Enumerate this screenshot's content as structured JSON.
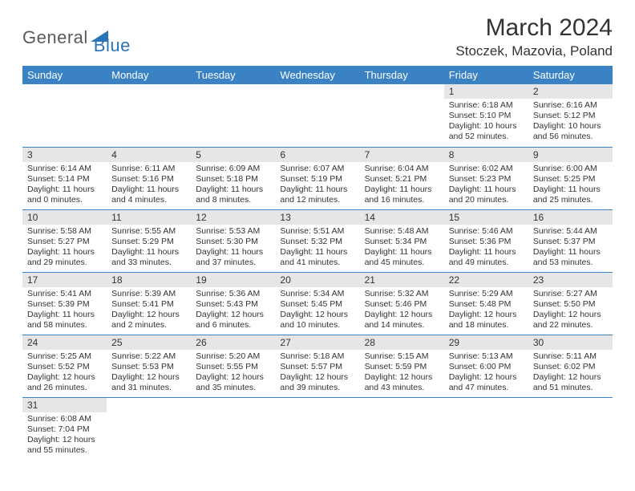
{
  "logo": {
    "general": "General",
    "blue": "Blue"
  },
  "title": "March 2024",
  "location": "Stoczek, Mazovia, Poland",
  "colors": {
    "header_bg": "#3a82c4",
    "header_text": "#ffffff",
    "daynum_bg": "#e6e6e6",
    "cell_border": "#3a82c4",
    "logo_blue": "#2a74b8",
    "logo_gray": "#5a5a5a"
  },
  "day_headers": [
    "Sunday",
    "Monday",
    "Tuesday",
    "Wednesday",
    "Thursday",
    "Friday",
    "Saturday"
  ],
  "weeks": [
    [
      null,
      null,
      null,
      null,
      null,
      {
        "n": "1",
        "sr": "Sunrise: 6:18 AM",
        "ss": "Sunset: 5:10 PM",
        "dl1": "Daylight: 10 hours",
        "dl2": "and 52 minutes."
      },
      {
        "n": "2",
        "sr": "Sunrise: 6:16 AM",
        "ss": "Sunset: 5:12 PM",
        "dl1": "Daylight: 10 hours",
        "dl2": "and 56 minutes."
      }
    ],
    [
      {
        "n": "3",
        "sr": "Sunrise: 6:14 AM",
        "ss": "Sunset: 5:14 PM",
        "dl1": "Daylight: 11 hours",
        "dl2": "and 0 minutes."
      },
      {
        "n": "4",
        "sr": "Sunrise: 6:11 AM",
        "ss": "Sunset: 5:16 PM",
        "dl1": "Daylight: 11 hours",
        "dl2": "and 4 minutes."
      },
      {
        "n": "5",
        "sr": "Sunrise: 6:09 AM",
        "ss": "Sunset: 5:18 PM",
        "dl1": "Daylight: 11 hours",
        "dl2": "and 8 minutes."
      },
      {
        "n": "6",
        "sr": "Sunrise: 6:07 AM",
        "ss": "Sunset: 5:19 PM",
        "dl1": "Daylight: 11 hours",
        "dl2": "and 12 minutes."
      },
      {
        "n": "7",
        "sr": "Sunrise: 6:04 AM",
        "ss": "Sunset: 5:21 PM",
        "dl1": "Daylight: 11 hours",
        "dl2": "and 16 minutes."
      },
      {
        "n": "8",
        "sr": "Sunrise: 6:02 AM",
        "ss": "Sunset: 5:23 PM",
        "dl1": "Daylight: 11 hours",
        "dl2": "and 20 minutes."
      },
      {
        "n": "9",
        "sr": "Sunrise: 6:00 AM",
        "ss": "Sunset: 5:25 PM",
        "dl1": "Daylight: 11 hours",
        "dl2": "and 25 minutes."
      }
    ],
    [
      {
        "n": "10",
        "sr": "Sunrise: 5:58 AM",
        "ss": "Sunset: 5:27 PM",
        "dl1": "Daylight: 11 hours",
        "dl2": "and 29 minutes."
      },
      {
        "n": "11",
        "sr": "Sunrise: 5:55 AM",
        "ss": "Sunset: 5:29 PM",
        "dl1": "Daylight: 11 hours",
        "dl2": "and 33 minutes."
      },
      {
        "n": "12",
        "sr": "Sunrise: 5:53 AM",
        "ss": "Sunset: 5:30 PM",
        "dl1": "Daylight: 11 hours",
        "dl2": "and 37 minutes."
      },
      {
        "n": "13",
        "sr": "Sunrise: 5:51 AM",
        "ss": "Sunset: 5:32 PM",
        "dl1": "Daylight: 11 hours",
        "dl2": "and 41 minutes."
      },
      {
        "n": "14",
        "sr": "Sunrise: 5:48 AM",
        "ss": "Sunset: 5:34 PM",
        "dl1": "Daylight: 11 hours",
        "dl2": "and 45 minutes."
      },
      {
        "n": "15",
        "sr": "Sunrise: 5:46 AM",
        "ss": "Sunset: 5:36 PM",
        "dl1": "Daylight: 11 hours",
        "dl2": "and 49 minutes."
      },
      {
        "n": "16",
        "sr": "Sunrise: 5:44 AM",
        "ss": "Sunset: 5:37 PM",
        "dl1": "Daylight: 11 hours",
        "dl2": "and 53 minutes."
      }
    ],
    [
      {
        "n": "17",
        "sr": "Sunrise: 5:41 AM",
        "ss": "Sunset: 5:39 PM",
        "dl1": "Daylight: 11 hours",
        "dl2": "and 58 minutes."
      },
      {
        "n": "18",
        "sr": "Sunrise: 5:39 AM",
        "ss": "Sunset: 5:41 PM",
        "dl1": "Daylight: 12 hours",
        "dl2": "and 2 minutes."
      },
      {
        "n": "19",
        "sr": "Sunrise: 5:36 AM",
        "ss": "Sunset: 5:43 PM",
        "dl1": "Daylight: 12 hours",
        "dl2": "and 6 minutes."
      },
      {
        "n": "20",
        "sr": "Sunrise: 5:34 AM",
        "ss": "Sunset: 5:45 PM",
        "dl1": "Daylight: 12 hours",
        "dl2": "and 10 minutes."
      },
      {
        "n": "21",
        "sr": "Sunrise: 5:32 AM",
        "ss": "Sunset: 5:46 PM",
        "dl1": "Daylight: 12 hours",
        "dl2": "and 14 minutes."
      },
      {
        "n": "22",
        "sr": "Sunrise: 5:29 AM",
        "ss": "Sunset: 5:48 PM",
        "dl1": "Daylight: 12 hours",
        "dl2": "and 18 minutes."
      },
      {
        "n": "23",
        "sr": "Sunrise: 5:27 AM",
        "ss": "Sunset: 5:50 PM",
        "dl1": "Daylight: 12 hours",
        "dl2": "and 22 minutes."
      }
    ],
    [
      {
        "n": "24",
        "sr": "Sunrise: 5:25 AM",
        "ss": "Sunset: 5:52 PM",
        "dl1": "Daylight: 12 hours",
        "dl2": "and 26 minutes."
      },
      {
        "n": "25",
        "sr": "Sunrise: 5:22 AM",
        "ss": "Sunset: 5:53 PM",
        "dl1": "Daylight: 12 hours",
        "dl2": "and 31 minutes."
      },
      {
        "n": "26",
        "sr": "Sunrise: 5:20 AM",
        "ss": "Sunset: 5:55 PM",
        "dl1": "Daylight: 12 hours",
        "dl2": "and 35 minutes."
      },
      {
        "n": "27",
        "sr": "Sunrise: 5:18 AM",
        "ss": "Sunset: 5:57 PM",
        "dl1": "Daylight: 12 hours",
        "dl2": "and 39 minutes."
      },
      {
        "n": "28",
        "sr": "Sunrise: 5:15 AM",
        "ss": "Sunset: 5:59 PM",
        "dl1": "Daylight: 12 hours",
        "dl2": "and 43 minutes."
      },
      {
        "n": "29",
        "sr": "Sunrise: 5:13 AM",
        "ss": "Sunset: 6:00 PM",
        "dl1": "Daylight: 12 hours",
        "dl2": "and 47 minutes."
      },
      {
        "n": "30",
        "sr": "Sunrise: 5:11 AM",
        "ss": "Sunset: 6:02 PM",
        "dl1": "Daylight: 12 hours",
        "dl2": "and 51 minutes."
      }
    ],
    [
      {
        "n": "31",
        "sr": "Sunrise: 6:08 AM",
        "ss": "Sunset: 7:04 PM",
        "dl1": "Daylight: 12 hours",
        "dl2": "and 55 minutes."
      },
      null,
      null,
      null,
      null,
      null,
      null
    ]
  ]
}
